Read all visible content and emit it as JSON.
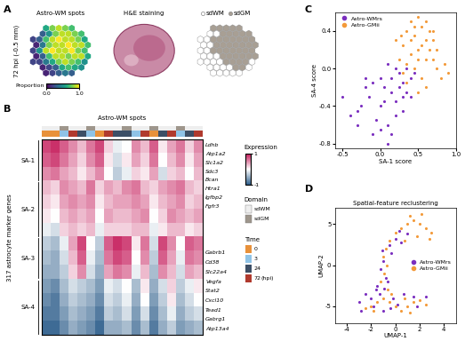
{
  "chart_data": [
    {
      "type": "heatmap",
      "label": "A",
      "title": "Astro-WM spots",
      "side_label": "72 hpi (-0.5 mm)",
      "cells": [
        [
          null,
          null,
          0.6,
          0.8,
          0.9,
          0.8,
          0.7,
          null,
          null
        ],
        [
          null,
          0.3,
          0.5,
          0.8,
          0.9,
          0.9,
          0.8,
          0.7,
          null
        ],
        [
          0.2,
          0.3,
          0.7,
          0.9,
          1.0,
          0.9,
          0.9,
          0.8,
          0.6
        ],
        [
          0.1,
          0.4,
          0.8,
          0.9,
          0.9,
          1.0,
          0.9,
          0.9,
          0.7
        ],
        [
          0.2,
          0.5,
          0.9,
          1.0,
          0.9,
          0.9,
          1.0,
          0.8,
          0.7
        ],
        [
          0.1,
          0.3,
          0.7,
          0.9,
          0.9,
          0.8,
          0.9,
          0.9,
          0.6
        ],
        [
          0.2,
          0.2,
          0.4,
          0.6,
          0.8,
          0.9,
          0.8,
          0.7,
          0.5
        ],
        [
          null,
          0.1,
          0.2,
          0.3,
          0.6,
          0.7,
          0.6,
          0.5,
          null
        ],
        [
          null,
          null,
          0.1,
          0.2,
          0.3,
          0.4,
          0.3,
          null,
          null
        ]
      ],
      "colorbar": {
        "title": "Proportion",
        "range": [
          0,
          1
        ],
        "ticks": [
          {
            "value": 0,
            "label": "0.0"
          },
          {
            "value": 1,
            "label": "1.0"
          }
        ]
      }
    },
    {
      "type": "image",
      "title": "H&E staining"
    },
    {
      "type": "heatmap",
      "series": [
        {
          "name": "sdWM",
          "color": "#ffffff"
        },
        {
          "name": "sdGM",
          "color": "#a89f94"
        }
      ],
      "cells": [
        [
          null,
          null,
          1,
          1,
          1,
          1,
          1,
          null,
          null
        ],
        [
          null,
          0,
          0,
          1,
          1,
          1,
          1,
          1,
          null
        ],
        [
          0,
          0,
          1,
          1,
          1,
          1,
          1,
          1,
          1
        ],
        [
          0,
          0,
          1,
          1,
          1,
          1,
          1,
          1,
          1
        ],
        [
          0,
          0,
          1,
          1,
          1,
          1,
          1,
          1,
          1
        ],
        [
          0,
          0,
          0,
          1,
          1,
          1,
          1,
          1,
          1
        ],
        [
          0,
          0,
          0,
          0,
          1,
          1,
          1,
          1,
          0
        ],
        [
          null,
          0,
          0,
          0,
          0,
          1,
          1,
          0,
          null
        ],
        [
          null,
          null,
          0,
          0,
          0,
          0,
          0,
          null,
          null
        ]
      ]
    },
    {
      "type": "heatmap",
      "label": "B",
      "title": "Astro-WM spots",
      "y_label": "317 astrocyte marker genes",
      "row_groups": [
        {
          "name": "SA-1",
          "rows": 3
        },
        {
          "name": "SA-2",
          "rows": 4
        },
        {
          "name": "SA-3",
          "rows": 3
        },
        {
          "name": "SA-4",
          "rows": 4
        }
      ],
      "genes_top": [
        "Ldhb",
        "Atp1a2",
        "Slc1a2",
        "Sdc3",
        "Bcan",
        "Htra1",
        "Igfbp2",
        "Fgfr3"
      ],
      "genes_bottom": [
        "Gabrb1",
        "Cd38",
        "Slc22a4",
        "Vegfa",
        "Stat2",
        "Cxcl10",
        "Tead1",
        "Gabrg1",
        "Atp13a4"
      ],
      "column_time": [
        0,
        0,
        3,
        72,
        24,
        3,
        0,
        72,
        24,
        24,
        3,
        72,
        0,
        24,
        72,
        3,
        24,
        72
      ],
      "column_domain": [
        "sdWM",
        "sdWM",
        "sdGM",
        "sdWM",
        "sdWM",
        "sdGM",
        "sdWM",
        "sdWM",
        "sdWM",
        "sdGM",
        "sdWM",
        "sdWM",
        "sdGM",
        "sdWM",
        "sdWM",
        "sdGM",
        "sdWM",
        "sdWM"
      ],
      "domain": {
        "title": "Domain",
        "levels": [
          "sdWM",
          "sdGM"
        ],
        "colors": [
          "#eeeeee",
          "#9e968c"
        ]
      },
      "time": {
        "title": "Time",
        "unit": "(hpi)",
        "levels": [
          0,
          3,
          24,
          72
        ],
        "colors": [
          "#e8913a",
          "#8fc3e6",
          "#3d4f66",
          "#b03a2e"
        ]
      },
      "colorbar": {
        "title": "Expression",
        "range": [
          -1,
          1
        ],
        "ticks": [
          -1,
          1
        ]
      },
      "values": [
        [
          0.8,
          0.9,
          0.7,
          0.5,
          0.3,
          0.6,
          0.8,
          0.2,
          -0.1,
          0.0,
          0.5,
          0.3,
          0.7,
          0.1,
          0.4,
          0.6,
          0.2,
          0.5
        ],
        [
          0.7,
          0.8,
          0.6,
          0.4,
          0.2,
          0.5,
          0.7,
          0.1,
          -0.2,
          0.1,
          0.4,
          0.2,
          0.6,
          0.0,
          0.3,
          0.5,
          0.1,
          0.4
        ],
        [
          0.5,
          0.6,
          0.4,
          0.3,
          0.1,
          0.3,
          0.5,
          0.0,
          -0.3,
          -0.1,
          0.2,
          0.1,
          0.4,
          -0.2,
          0.2,
          0.3,
          0.0,
          0.3
        ],
        [
          0.3,
          0.2,
          0.5,
          0.4,
          0.3,
          0.6,
          0.2,
          0.4,
          0.3,
          0.5,
          0.6,
          0.3,
          0.2,
          0.4,
          0.5,
          0.6,
          0.3,
          0.2
        ],
        [
          0.2,
          0.1,
          0.4,
          0.5,
          0.4,
          0.5,
          0.1,
          0.3,
          0.4,
          0.4,
          0.5,
          0.4,
          0.1,
          0.3,
          0.4,
          0.5,
          0.2,
          0.3
        ],
        [
          0.1,
          0.0,
          0.3,
          0.4,
          0.3,
          0.4,
          0.0,
          0.4,
          0.3,
          0.3,
          0.4,
          0.5,
          0.0,
          0.2,
          0.5,
          0.4,
          0.3,
          0.4
        ],
        [
          -0.1,
          -0.2,
          0.2,
          0.3,
          0.2,
          0.3,
          -0.1,
          0.2,
          0.2,
          0.2,
          0.3,
          0.3,
          -0.1,
          0.1,
          0.3,
          0.3,
          0.1,
          0.2
        ],
        [
          -0.3,
          -0.4,
          -0.1,
          0.4,
          0.8,
          0.0,
          -0.3,
          0.7,
          0.9,
          0.8,
          0.1,
          0.6,
          -0.2,
          0.8,
          0.5,
          0.0,
          0.7,
          0.6
        ],
        [
          -0.4,
          -0.5,
          -0.2,
          0.3,
          0.7,
          -0.1,
          -0.4,
          0.6,
          0.8,
          0.7,
          0.0,
          0.5,
          -0.3,
          0.7,
          0.4,
          -0.1,
          0.6,
          0.5
        ],
        [
          -0.5,
          -0.5,
          -0.3,
          0.2,
          0.5,
          -0.2,
          -0.5,
          0.4,
          0.6,
          0.5,
          -0.1,
          0.3,
          -0.4,
          0.5,
          0.3,
          -0.2,
          0.4,
          0.3
        ],
        [
          -0.6,
          -0.7,
          -0.4,
          -0.2,
          -0.3,
          -0.4,
          -0.6,
          -0.1,
          -0.2,
          0.0,
          -0.4,
          0.1,
          -0.5,
          -0.2,
          0.2,
          -0.3,
          -0.1,
          0.1
        ],
        [
          -0.7,
          -0.8,
          -0.5,
          -0.3,
          -0.4,
          -0.5,
          -0.7,
          -0.2,
          -0.3,
          -0.1,
          -0.5,
          0.0,
          -0.6,
          -0.3,
          0.1,
          -0.4,
          -0.2,
          0.0
        ],
        [
          -0.8,
          -0.8,
          -0.6,
          -0.4,
          -0.5,
          -0.6,
          -0.8,
          -0.3,
          -0.4,
          -0.2,
          -0.6,
          -0.2,
          -0.7,
          -0.4,
          -0.1,
          -0.5,
          -0.3,
          -0.2
        ],
        [
          -0.9,
          -0.9,
          -0.7,
          -0.5,
          -0.6,
          -0.7,
          -0.9,
          -0.5,
          -0.5,
          -0.4,
          -0.7,
          -0.4,
          -0.8,
          -0.5,
          -0.3,
          -0.6,
          -0.5,
          -0.4
        ]
      ]
    },
    {
      "type": "scatter",
      "label": "C",
      "x_label": "SA-1 score",
      "y_label": "SA-4 score",
      "xlim": [
        -0.6,
        1.0
      ],
      "ylim": [
        -0.85,
        0.6
      ],
      "xticks": [
        -0.5,
        {
          "value": 0,
          "label": "0.0"
        },
        0.5,
        {
          "value": 1,
          "label": "1.0"
        }
      ],
      "yticks": [
        -0.8,
        -0.4,
        {
          "value": 0,
          "label": "0.0"
        },
        0.4
      ],
      "legend": "upper left",
      "series": [
        {
          "name": "Astro-WMrs",
          "color": "#7b2fbf",
          "x": [
            -0.5,
            -0.4,
            -0.3,
            -0.2,
            -0.1,
            0.0,
            0.1,
            0.2,
            0.3,
            0.4,
            -0.25,
            -0.15,
            0.05,
            0.15,
            0.25,
            0.35,
            -0.05,
            0.1,
            0.2,
            0.3,
            0.0,
            -0.1,
            0.15,
            0.25,
            0.35,
            0.45,
            0.1,
            0.2,
            -0.3,
            0.05,
            0.3,
            0.4,
            0.15,
            -0.2,
            0.0
          ],
          "y": [
            -0.3,
            -0.5,
            -0.6,
            -0.2,
            -0.7,
            -0.4,
            -0.8,
            -0.5,
            -0.3,
            -0.1,
            -0.4,
            -0.3,
            -0.2,
            -0.1,
            -0.05,
            0.0,
            -0.55,
            -0.6,
            -0.35,
            -0.45,
            -0.1,
            -0.15,
            -0.25,
            -0.2,
            -0.25,
            -0.05,
            0.05,
            0.0,
            -0.45,
            -0.35,
            -0.15,
            -0.3,
            -0.7,
            -0.1,
            -0.65
          ]
        },
        {
          "name": "Astro-GMii",
          "color": "#f39a3a",
          "x": [
            0.25,
            0.3,
            0.35,
            0.4,
            0.45,
            0.5,
            0.55,
            0.6,
            0.65,
            0.7,
            0.75,
            0.8,
            0.85,
            0.3,
            0.4,
            0.5,
            0.6,
            0.7,
            0.35,
            0.45,
            0.55,
            0.65,
            0.2,
            0.5,
            0.6,
            0.4,
            0.55,
            0.7,
            0.9,
            0.45,
            0.35,
            0.6,
            0.5,
            0.75,
            0.28
          ],
          "y": [
            0.1,
            0.25,
            0.4,
            0.5,
            0.35,
            0.55,
            0.45,
            0.3,
            0.2,
            0.1,
            0.0,
            -0.1,
            0.05,
            -0.05,
            0.15,
            0.2,
            0.5,
            0.3,
            -0.15,
            0.0,
            -0.1,
            0.4,
            0.3,
            0.1,
            -0.2,
            0.3,
            0.25,
            0.4,
            -0.05,
            0.45,
            0.05,
            0.1,
            -0.25,
            0.2,
            0.35
          ]
        }
      ]
    },
    {
      "type": "scatter",
      "label": "D",
      "title": "Spatial-feature reclustering",
      "x_label": "UMAP-1",
      "y_label": "UMAP-2",
      "xlim": [
        -5,
        5
      ],
      "ylim": [
        -7,
        7
      ],
      "xticks": [
        -4,
        -2,
        0,
        2,
        4
      ],
      "yticks": [
        -5,
        0,
        5
      ],
      "legend": "center right",
      "series": [
        {
          "name": "Astro-WMrs",
          "color": "#7b2fbf",
          "x": [
            -0.5,
            0.0,
            0.5,
            -0.3,
            -1.0,
            -1.2,
            -0.8,
            -1.5,
            -1.3,
            -0.6,
            -1.1,
            0.3,
            1.0,
            -2.0,
            -2.5,
            -1.8,
            -0.2,
            0.7,
            1.5,
            -1.0,
            -0.4,
            0.2,
            -0.9,
            -1.6,
            -3.0,
            -2.8,
            1.8,
            2.5
          ],
          "y": [
            2.5,
            3.2,
            2.8,
            1.5,
            0.5,
            -0.5,
            -1.5,
            -2.5,
            -3.5,
            -2.0,
            1.8,
            4.2,
            3.8,
            -4.0,
            -3.5,
            -5.0,
            -4.0,
            -3.5,
            -3.8,
            -5.5,
            -5.2,
            -4.8,
            -2.8,
            -3.0,
            -4.5,
            -5.5,
            -5.0,
            -3.8
          ]
        },
        {
          "name": "Astro-GMii",
          "color": "#f39a3a",
          "x": [
            0.0,
            0.5,
            1.0,
            1.5,
            2.0,
            2.5,
            3.0,
            0.8,
            1.8,
            2.8,
            1.2,
            2.2,
            -0.5,
            -0.8,
            -1.0,
            -0.7,
            -0.9,
            -1.2,
            -0.6,
            -2.0,
            -1.5,
            -1.0,
            -0.5,
            0.0,
            0.5,
            1.0,
            1.5,
            2.0,
            -1.8,
            -0.3,
            0.8,
            2.5,
            -2.5,
            1.2
          ],
          "y": [
            4.0,
            4.5,
            5.0,
            5.5,
            5.0,
            4.5,
            4.0,
            3.0,
            3.5,
            3.2,
            6.0,
            6.2,
            3.0,
            2.0,
            1.0,
            0.0,
            -1.0,
            -2.0,
            -3.0,
            -5.0,
            -4.5,
            -4.0,
            -4.5,
            -5.0,
            -5.5,
            -5.0,
            -4.5,
            -4.2,
            -5.5,
            -3.5,
            -4.0,
            -4.8,
            -5.2,
            -5.8
          ]
        }
      ]
    }
  ]
}
